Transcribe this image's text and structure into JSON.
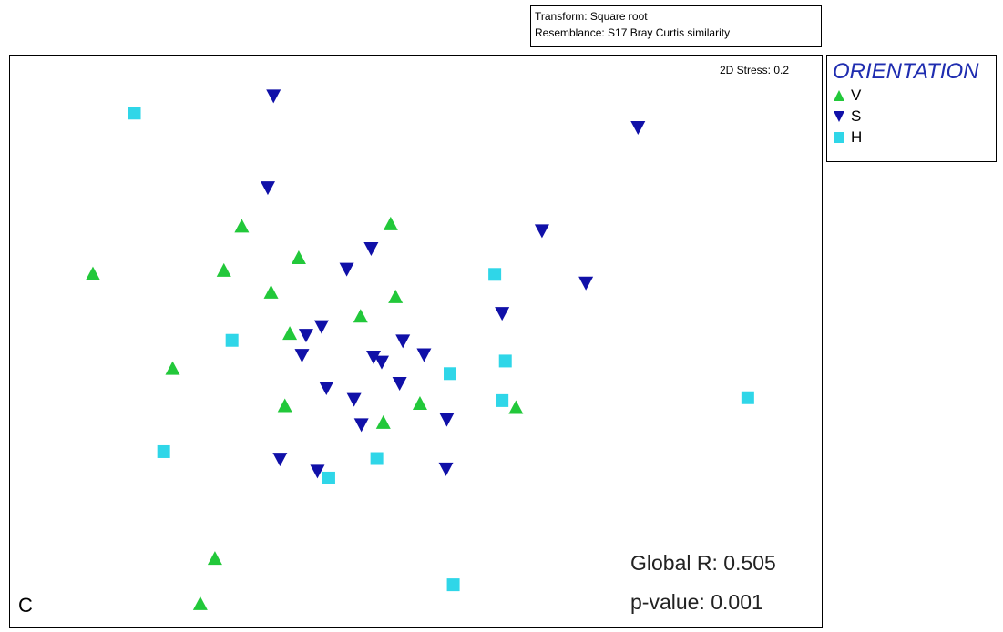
{
  "header": {
    "transform": "Transform: Square root",
    "resemblance": "Resemblance: S17 Bray Curtis similarity"
  },
  "plot": {
    "stress": "2D Stress: 0.2",
    "panel_letter": "C",
    "global_r": "Global R: 0.505",
    "p_value": "p-value: 0.001"
  },
  "legend": {
    "title": "ORIENTATION",
    "items": [
      {
        "label": "V",
        "marker": "triangle-up",
        "color": "#22c83a"
      },
      {
        "label": "S",
        "marker": "triangle-down",
        "color": "#1010a8"
      },
      {
        "label": "H",
        "marker": "square",
        "color": "#2fd6e8"
      }
    ]
  },
  "chart_data": {
    "type": "scatter",
    "title": "",
    "xlabel": "",
    "ylabel": "",
    "grid": false,
    "legend_position": "right",
    "xlim": [
      0,
      100
    ],
    "ylim": [
      0,
      100
    ],
    "series": [
      {
        "name": "V",
        "marker": "triangle-up",
        "color": "#22c83a",
        "points": [
          [
            10.3,
            61.8
          ],
          [
            20.1,
            45.3
          ],
          [
            28.6,
            70.1
          ],
          [
            26.4,
            62.4
          ],
          [
            32.2,
            58.6
          ],
          [
            35.6,
            64.6
          ],
          [
            46.9,
            70.5
          ],
          [
            47.5,
            57.8
          ],
          [
            34.5,
            51.4
          ],
          [
            43.2,
            54.4
          ],
          [
            33.9,
            38.8
          ],
          [
            46.0,
            35.9
          ],
          [
            50.5,
            39.2
          ],
          [
            62.3,
            38.5
          ],
          [
            25.3,
            12.2
          ],
          [
            23.5,
            4.3
          ]
        ]
      },
      {
        "name": "S",
        "marker": "triangle-down",
        "color": "#1010a8",
        "points": [
          [
            32.5,
            92.8
          ],
          [
            77.3,
            87.3
          ],
          [
            31.8,
            76.8
          ],
          [
            65.5,
            69.3
          ],
          [
            44.5,
            66.2
          ],
          [
            41.5,
            62.6
          ],
          [
            70.9,
            60.2
          ],
          [
            60.6,
            54.9
          ],
          [
            38.4,
            52.6
          ],
          [
            36.5,
            51.1
          ],
          [
            48.4,
            50.1
          ],
          [
            36.0,
            47.6
          ],
          [
            44.8,
            47.3
          ],
          [
            45.8,
            46.4
          ],
          [
            51.0,
            47.7
          ],
          [
            39.0,
            41.9
          ],
          [
            48.0,
            42.7
          ],
          [
            42.4,
            39.9
          ],
          [
            43.3,
            35.5
          ],
          [
            53.8,
            36.4
          ],
          [
            33.3,
            29.5
          ],
          [
            37.9,
            27.4
          ],
          [
            53.7,
            27.8
          ]
        ]
      },
      {
        "name": "H",
        "marker": "square",
        "color": "#2fd6e8",
        "points": [
          [
            15.4,
            89.8
          ],
          [
            59.7,
            61.7
          ],
          [
            27.4,
            50.2
          ],
          [
            61.0,
            46.6
          ],
          [
            54.2,
            44.4
          ],
          [
            60.6,
            39.7
          ],
          [
            90.8,
            40.2
          ],
          [
            19.0,
            30.8
          ],
          [
            45.2,
            29.6
          ],
          [
            39.3,
            26.2
          ],
          [
            54.6,
            7.6
          ]
        ]
      }
    ]
  }
}
